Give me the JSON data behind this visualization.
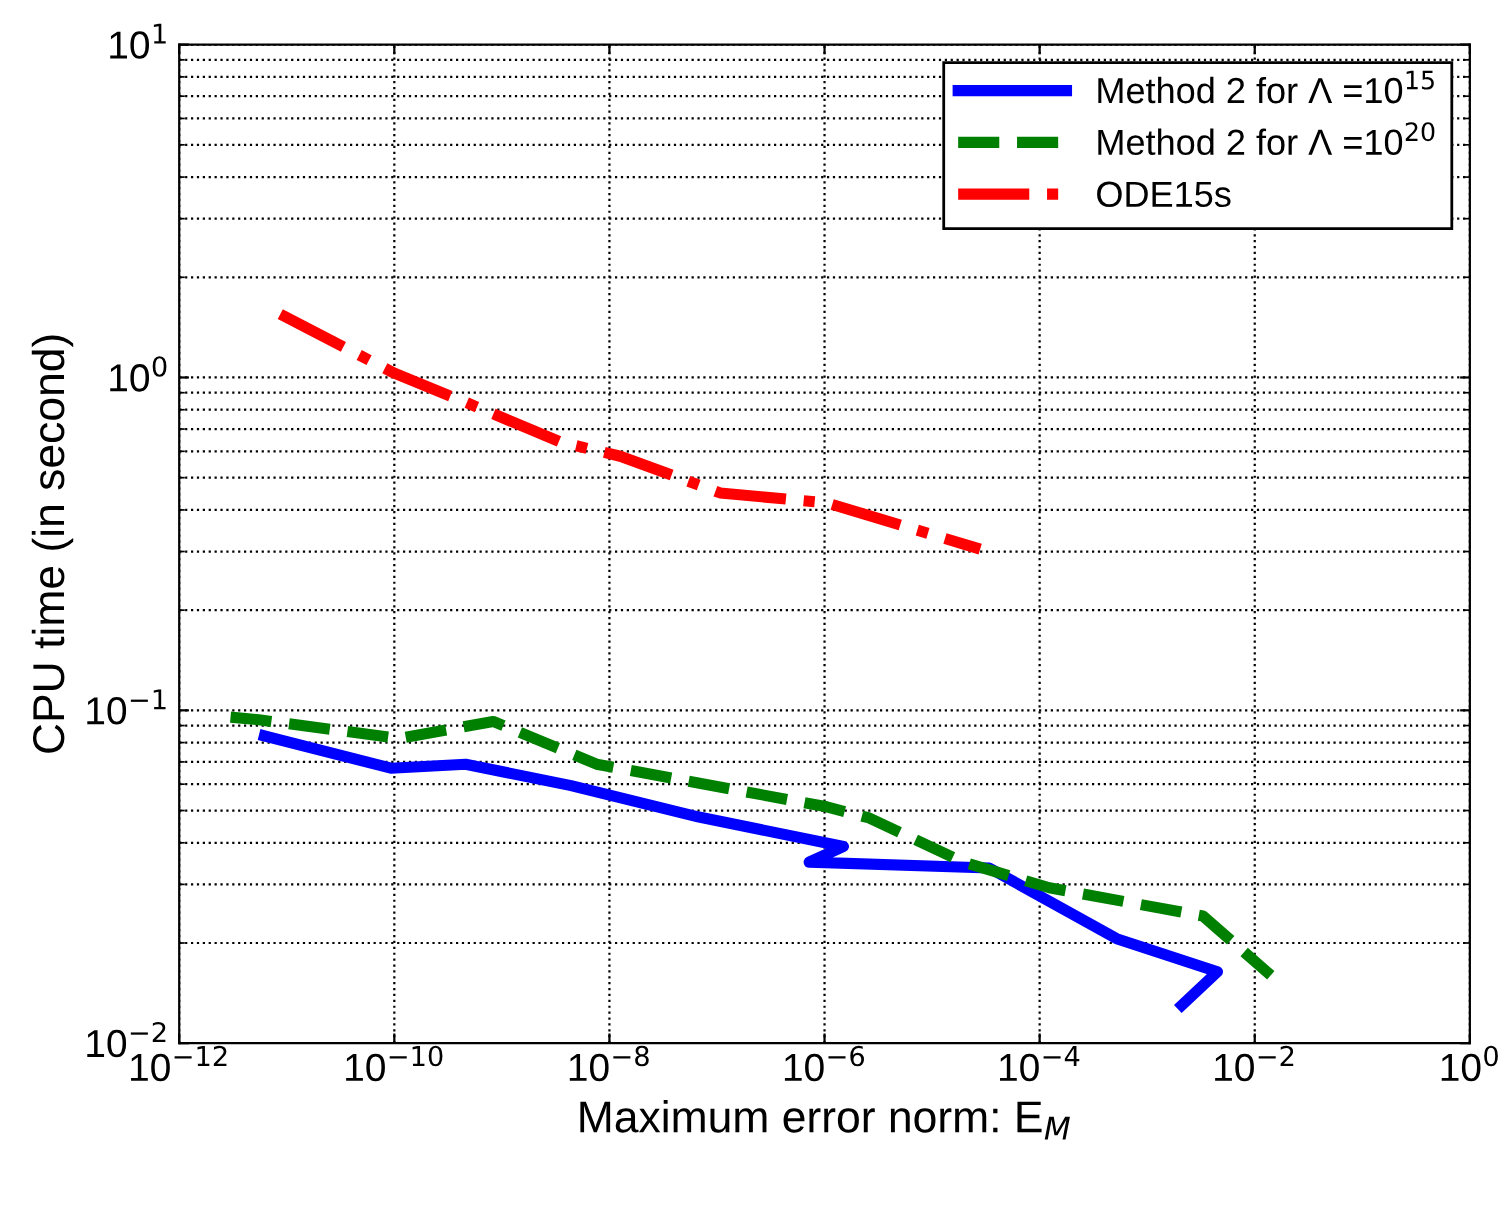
{
  "chart_data": {
    "type": "line",
    "xlabel": "Maximum error norm: E$_{M}$",
    "ylabel": "CPU time (in second)",
    "log": "xy",
    "grid": true,
    "legend": "top right",
    "marker": "none",
    "xlim": [
      1e-12,
      1
    ],
    "xticks": [
      {
        "value": 1e-12,
        "label": "10$^{−12}$"
      },
      {
        "value": 1e-10,
        "label": "10$^{−10}$"
      },
      {
        "value": 1e-08,
        "label": "10$^{−8}$"
      },
      {
        "value": 1e-06,
        "label": "10$^{−6}$"
      },
      {
        "value": 0.0001,
        "label": "10$^{−4}$"
      },
      {
        "value": 0.01,
        "label": "10$^{−2}$"
      },
      {
        "value": 1,
        "label": "10$^{0}$"
      }
    ],
    "ylim": [
      0.01,
      10
    ],
    "yticks": [
      {
        "value": 0.01,
        "label": "10$^{−2}$"
      },
      {
        "value": 0.1,
        "label": "10$^{−1}$"
      },
      {
        "value": 1,
        "label": "10$^{0}$"
      },
      {
        "value": 10,
        "label": "10$^{1}$"
      }
    ],
    "series": [
      {
        "name": "Method 2 for Λ =10$^{15}$",
        "color": "#0000ff",
        "line_style": "solid",
        "x": [
          6.2e-12,
          9.3e-11,
          4.6e-10,
          4.4e-09,
          6.8e-08,
          1.5e-06,
          7.2e-07,
          3.4e-05,
          0.00052,
          0.0045,
          0.0021
        ],
        "values": [
          0.0838,
          0.067,
          0.0689,
          0.0594,
          0.0478,
          0.039,
          0.035,
          0.0336,
          0.0206,
          0.0164,
          0.013
        ]
      },
      {
        "name": "Method 2 for Λ =10$^{20}$",
        "color": "#008000",
        "line_style": "dashed",
        "x": [
          3e-12,
          5.5e-12,
          1.1e-10,
          8.3e-10,
          7.6e-09,
          1.05e-06,
          2.6e-06,
          1.95e-05,
          0.000123,
          0.0033,
          0.0141
        ],
        "values": [
          0.0954,
          0.0937,
          0.0823,
          0.0926,
          0.0689,
          0.0513,
          0.0475,
          0.035,
          0.0293,
          0.0241,
          0.016
        ]
      },
      {
        "name": "ODE15s",
        "color": "#ff0000",
        "line_style": "dashdot",
        "x": [
          8.7e-12,
          1e-10,
          4.7e-10,
          3.5e-09,
          1.26e-08,
          1.07e-07,
          1.05e-06,
          2.8e-05
        ],
        "values": [
          1.55,
          1.03,
          0.84,
          0.64,
          0.58,
          0.45,
          0.42,
          0.305
        ]
      }
    ]
  }
}
